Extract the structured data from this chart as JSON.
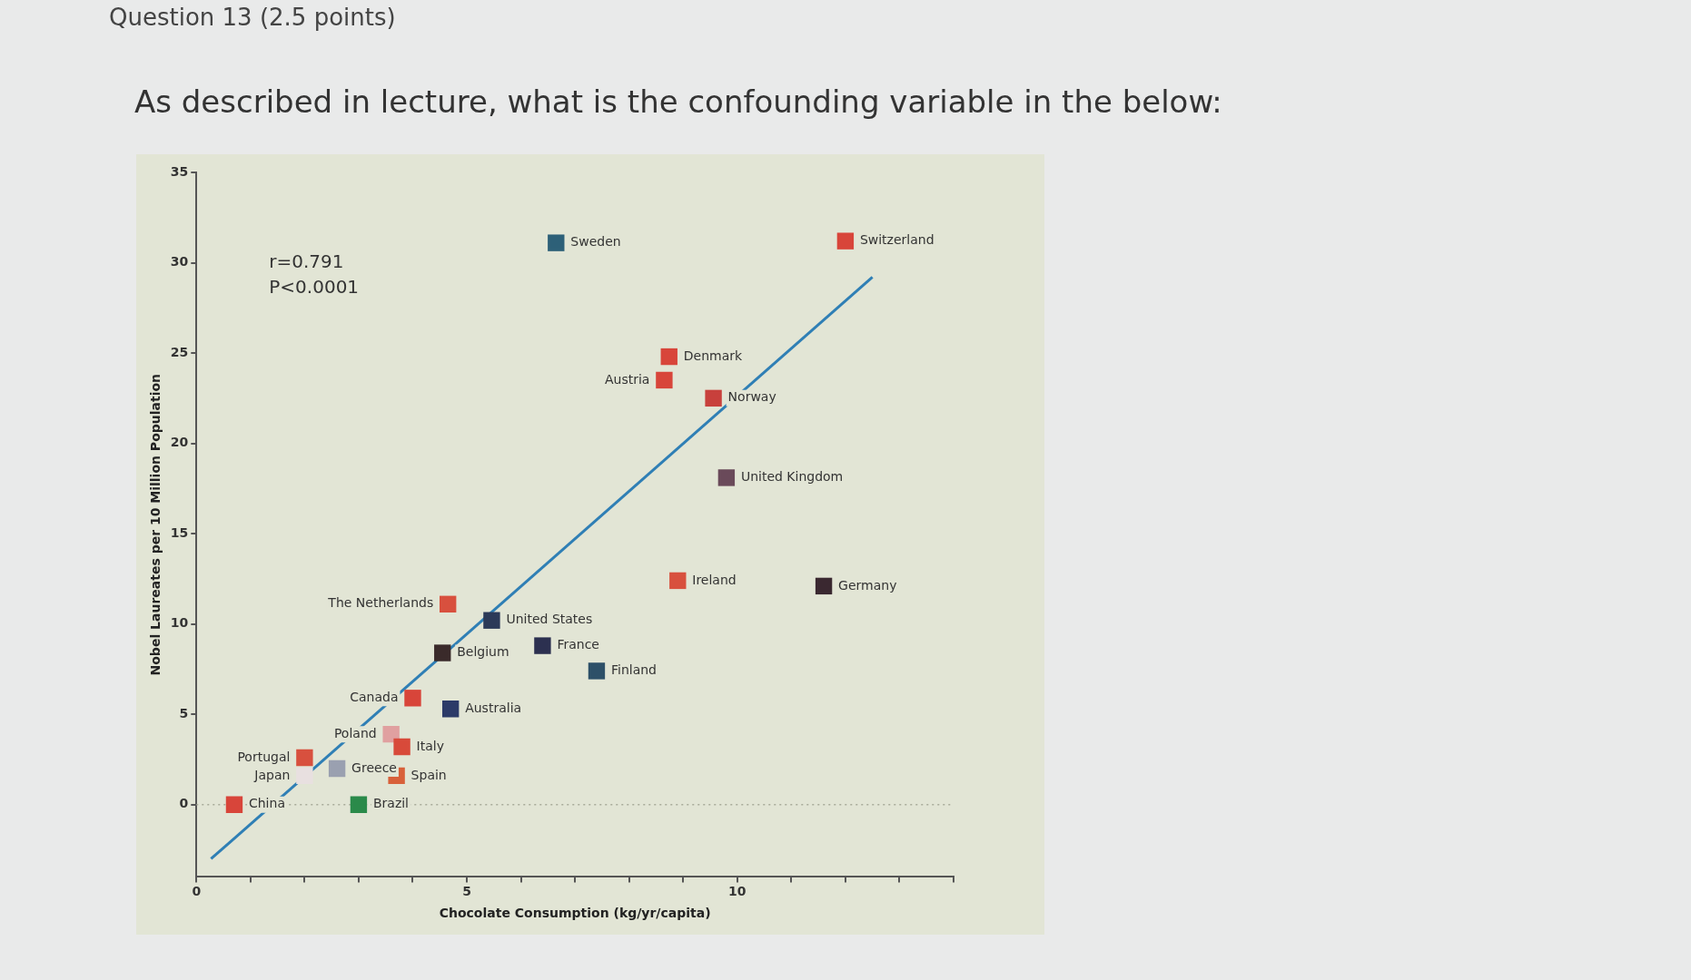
{
  "chart_data": {
    "type": "scatter",
    "subtitle": "Question 13 (2.5 points)",
    "title": "As described in lecture, what is the confounding variable in the below:",
    "xlabel": "Chocolate Consumption (kg/yr/capita)",
    "ylabel": "Nobel Laureates per 10 Million Population",
    "xlim": [
      0,
      14
    ],
    "xticks": [
      0,
      {
        "value": 1,
        "label": null
      },
      {
        "value": 2,
        "label": null
      },
      {
        "value": 3,
        "label": null
      },
      {
        "value": 4,
        "label": null
      },
      5,
      {
        "value": 6,
        "label": null
      },
      {
        "value": 7,
        "label": null
      },
      {
        "value": 8,
        "label": null
      },
      {
        "value": 9,
        "label": null
      },
      10,
      {
        "value": 11,
        "label": null
      },
      {
        "value": 12,
        "label": null
      },
      {
        "value": 13,
        "label": null
      },
      {
        "value": 14,
        "label": null
      }
    ],
    "ylim": [
      -4,
      35
    ],
    "yticks": [
      0,
      5,
      10,
      15,
      20,
      25,
      30,
      35
    ],
    "grid": false,
    "legend": false,
    "marker": "square",
    "series": [
      {
        "type": "scatter",
        "x": [
          6.65,
          12.0,
          8.74,
          8.65,
          9.56,
          9.8,
          8.9,
          11.6,
          6.4,
          7.4,
          4.65,
          5.46,
          4.55,
          4.0,
          4.7,
          3.6,
          3.8,
          3.7,
          2.6,
          2.0,
          2.0,
          3.0,
          0.7
        ],
        "values": [
          31.1,
          31.2,
          24.8,
          23.5,
          22.5,
          18.1,
          12.4,
          12.1,
          8.8,
          7.4,
          11.1,
          10.2,
          8.4,
          5.9,
          5.3,
          3.9,
          3.2,
          1.6,
          2.0,
          2.6,
          1.6,
          0.0,
          0.0
        ],
        "colors": [
          "#2d6078",
          "#d8453a",
          "#d8453a",
          "#d8453a",
          "#c8403c",
          "#6a4a5a",
          "#d8503e",
          "#3a2830",
          "#2c3050",
          "#2d5068",
          "#d8503e",
          "#2c3a58",
          "#3a2a2a",
          "#d8453a",
          "#2c3a68",
          "#e0a0a0",
          "#d84a3a",
          "#d8603a",
          "#9aa0b0",
          "#d8503e",
          "#e8e0e0",
          "#2a8a4a",
          "#d8453a"
        ]
      },
      {
        "type": "line",
        "x": [
          0.27,
          12.5
        ],
        "values": [
          -3.0,
          29.2
        ],
        "color": "#2f7fb5",
        "marker": "none"
      }
    ],
    "ref_lines": [
      {
        "axis": "y",
        "value": 0,
        "line_style": "dotted",
        "color": "#a8ab9a"
      }
    ],
    "annotations": [
      "r=0.791",
      "P<0.0001",
      {
        "text": "Sweden",
        "x": 6.65,
        "y": 31.1
      },
      {
        "text": "Switzerland",
        "x": 12.0,
        "y": 31.2
      },
      {
        "text": "Denmark",
        "x": 8.74,
        "y": 24.8
      },
      {
        "text": "Austria",
        "x": 8.65,
        "y": 23.5
      },
      {
        "text": "Norway",
        "x": 9.56,
        "y": 22.5
      },
      {
        "text": "United Kingdom",
        "x": 9.8,
        "y": 18.1
      },
      {
        "text": "Ireland",
        "x": 8.9,
        "y": 12.4
      },
      {
        "text": "Germany",
        "x": 11.6,
        "y": 12.1
      },
      {
        "text": "France",
        "x": 6.4,
        "y": 8.8
      },
      {
        "text": "Finland",
        "x": 7.4,
        "y": 7.4
      },
      {
        "text": "The Netherlands",
        "x": 4.65,
        "y": 11.1
      },
      {
        "text": "United States",
        "x": 5.46,
        "y": 10.2
      },
      {
        "text": "Belgium",
        "x": 4.55,
        "y": 8.4
      },
      {
        "text": "Canada",
        "x": 4.0,
        "y": 5.9
      },
      {
        "text": "Australia",
        "x": 4.7,
        "y": 5.3
      },
      {
        "text": "Poland",
        "x": 3.6,
        "y": 3.9
      },
      {
        "text": "Italy",
        "x": 3.8,
        "y": 3.2
      },
      {
        "text": "Spain",
        "x": 3.7,
        "y": 1.6
      },
      {
        "text": "Greece",
        "x": 2.6,
        "y": 2.0
      },
      {
        "text": "Portugal",
        "x": 2.0,
        "y": 2.6
      },
      {
        "text": "Japan",
        "x": 2.0,
        "y": 1.6
      },
      {
        "text": "Brazil",
        "x": 3.0,
        "y": 0.0
      },
      {
        "text": "China",
        "x": 0.7,
        "y": 0.0
      }
    ]
  }
}
